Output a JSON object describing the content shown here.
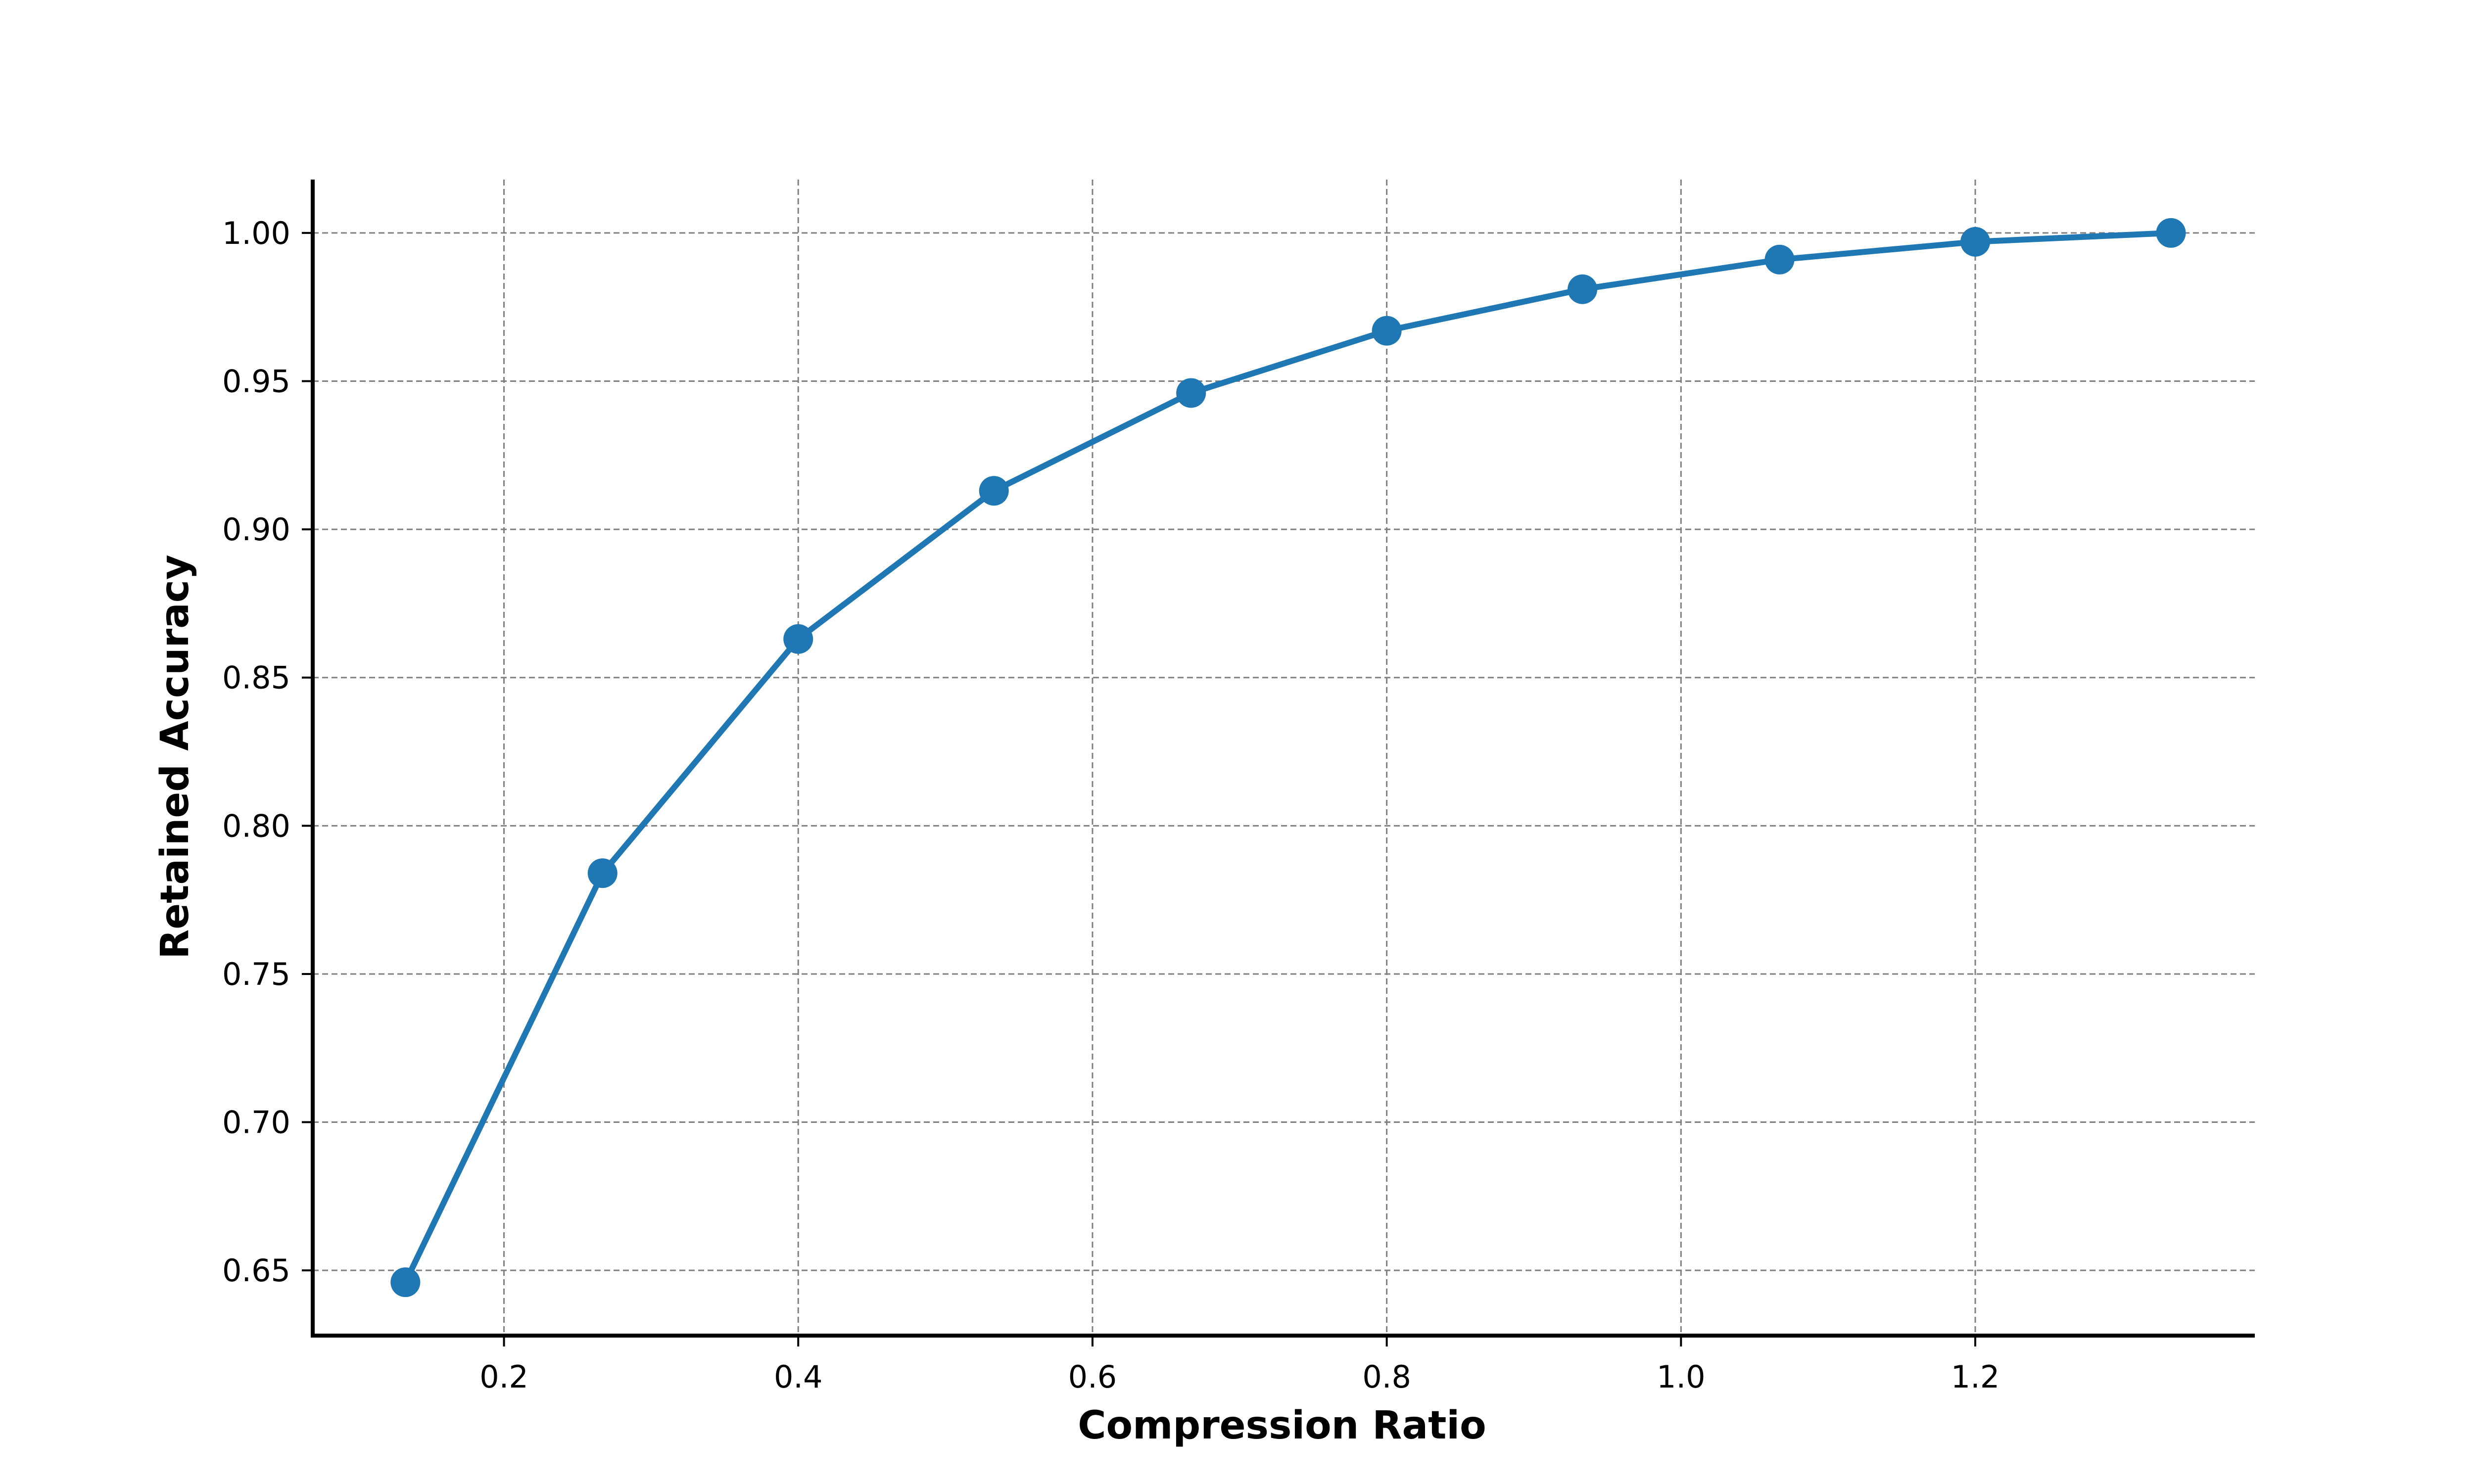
{
  "chart_data": {
    "type": "line",
    "title": "",
    "xlabel": "Compression Ratio",
    "ylabel": "Retained Accuracy",
    "xlim": [
      0.07,
      1.39
    ],
    "ylim": [
      0.628,
      1.018
    ],
    "xticks": [
      0.2,
      0.4,
      0.6,
      0.8,
      1.0,
      1.2
    ],
    "xtick_labels": [
      "0.2",
      "0.4",
      "0.6",
      "0.8",
      "1.0",
      "1.2"
    ],
    "yticks": [
      0.65,
      0.7,
      0.75,
      0.8,
      0.85,
      0.9,
      0.95,
      1.0
    ],
    "ytick_labels": [
      "0.65",
      "0.70",
      "0.75",
      "0.80",
      "0.85",
      "0.90",
      "0.95",
      "1.00"
    ],
    "grid": true,
    "series": [
      {
        "color": "#1f77b4",
        "marker": "circle",
        "x": [
          0.133,
          0.267,
          0.4,
          0.533,
          0.667,
          0.8,
          0.933,
          1.067,
          1.2,
          1.333
        ],
        "y": [
          0.646,
          0.784,
          0.863,
          0.913,
          0.946,
          0.967,
          0.981,
          0.991,
          0.997,
          1.0
        ]
      }
    ]
  }
}
